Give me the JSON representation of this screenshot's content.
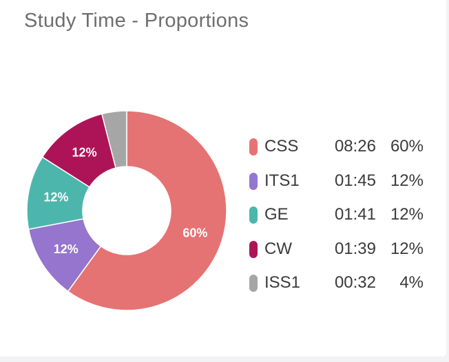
{
  "card": {
    "title": "Study Time - Proportions"
  },
  "chart_data": {
    "type": "pie",
    "donut": true,
    "title": "Study Time - Proportions",
    "categories": [
      "CSS",
      "ITS1",
      "GE",
      "CW",
      "ISS1"
    ],
    "times": [
      "08:26",
      "01:45",
      "01:41",
      "01:39",
      "00:32"
    ],
    "values": [
      60,
      12,
      12,
      12,
      4
    ],
    "percent_labels": [
      "60%",
      "12%",
      "12%",
      "12%",
      "4%"
    ],
    "slice_labels": [
      "60%",
      "12%",
      "12%",
      "12%",
      ""
    ],
    "colors": [
      "#e57373",
      "#9575cd",
      "#4db6ac",
      "#ad1457",
      "#a6a6a6"
    ],
    "legend_position": "right"
  }
}
